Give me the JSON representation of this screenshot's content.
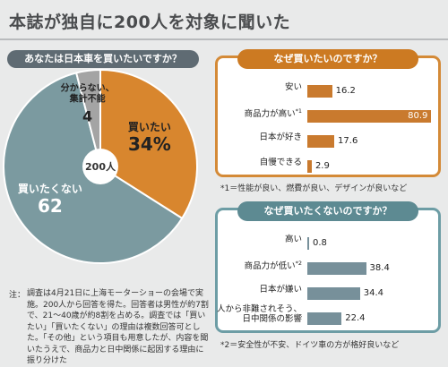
{
  "header": {
    "title": "本誌が独自に200人を対象に聞いた"
  },
  "chart_data": [
    {
      "type": "pie",
      "title": "あなたは日本車を買いたいですか？",
      "center_label": "200人",
      "slices": [
        {
          "label": "買いたい",
          "value": 34,
          "display": "34%",
          "color": "#d8862e"
        },
        {
          "label": "買いたくない",
          "value": 62,
          "display": "62",
          "color": "#7b9aa0"
        },
        {
          "label": "分からない、\n集計不能",
          "value": 4,
          "display": "4",
          "color": "#a4a4a4"
        }
      ]
    },
    {
      "type": "bar",
      "title": "なぜ買いたいのですか？",
      "categories": [
        "安い",
        "商品力が高い",
        "日本が好き",
        "自慢できる"
      ],
      "marks": [
        "",
        "*1",
        "",
        ""
      ],
      "values": [
        16.2,
        80.9,
        17.6,
        2.9
      ],
      "xlim": [
        0,
        82
      ],
      "color": "#c97a2e",
      "footnote": "*1＝性能が良い、燃費が良い、デザインが良いなど"
    },
    {
      "type": "bar",
      "title": "なぜ買いたくないのですか？",
      "categories": [
        "高い",
        "商品力が低い",
        "日本が嫌い",
        "人から非難されそう、\n日中関係の影響"
      ],
      "marks": [
        "",
        "*2",
        "",
        ""
      ],
      "values": [
        0.8,
        38.4,
        34.4,
        22.4
      ],
      "xlim": [
        0,
        82
      ],
      "color": "#77909a",
      "footnote": "*2＝安全性が不安、ドイツ車の方が格好良いなど"
    }
  ],
  "note": {
    "mark": "注：",
    "text": "調査は4月21日に上海モーターショーの会場で実施。200人から回答を得た。回答者は男性が約7割で、21～40歳が約8割を占める。調査では「買いたい」「買いたくない」の理由は複数回答可とした。「その他」という項目も用意したが、内容を聞いたうえで、商品力と日中関係に起因する理由に振り分けた"
  }
}
